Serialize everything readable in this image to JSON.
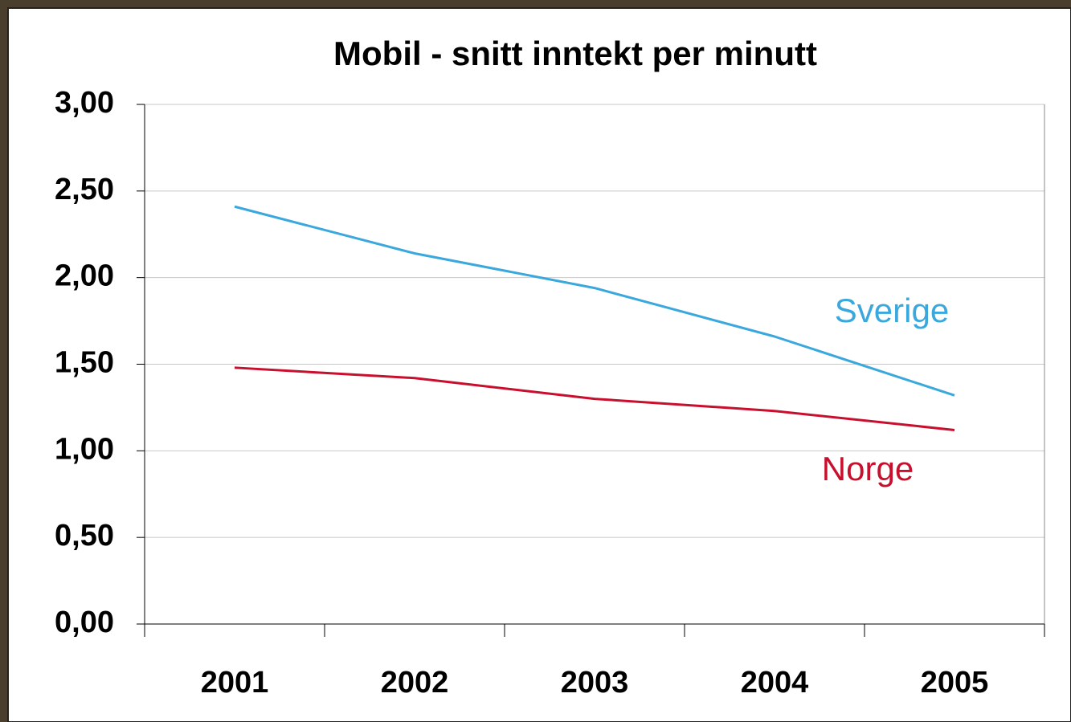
{
  "chart_data": {
    "type": "line",
    "title": "Mobil - snitt inntekt per minutt",
    "categories": [
      "2001",
      "2002",
      "2003",
      "2004",
      "2005"
    ],
    "series": [
      {
        "name": "Sverige",
        "color": "#3aa8dc",
        "values": [
          2.41,
          2.14,
          1.94,
          1.66,
          1.32
        ]
      },
      {
        "name": "Norge",
        "color": "#c8102e",
        "values": [
          1.48,
          1.42,
          1.3,
          1.23,
          1.12
        ]
      }
    ],
    "ylim": [
      0,
      3
    ],
    "yticks": [
      {
        "value": 0,
        "label": "0,00"
      },
      {
        "value": 0.5,
        "label": "0,50"
      },
      {
        "value": 1,
        "label": "1,00"
      },
      {
        "value": 1.5,
        "label": "1,50"
      },
      {
        "value": 2,
        "label": "2,00"
      },
      {
        "value": 2.5,
        "label": "2,50"
      },
      {
        "value": 3,
        "label": "3,00"
      }
    ],
    "grid": true
  }
}
